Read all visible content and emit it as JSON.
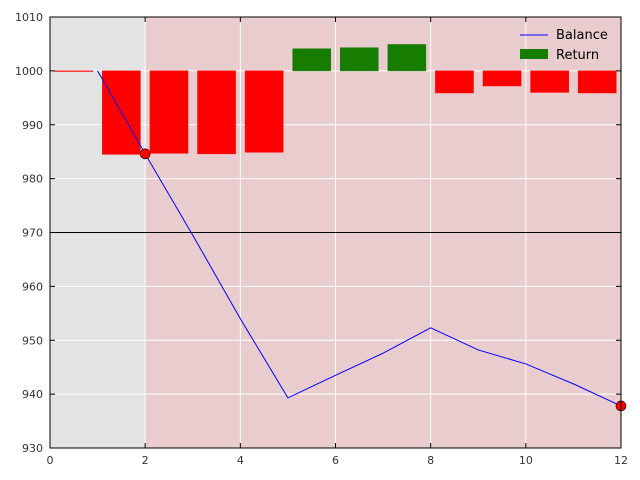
{
  "chart_data": {
    "type": "line",
    "title": "",
    "xlabel": "",
    "ylabel": "",
    "xlim": [
      0,
      12
    ],
    "ylim": [
      930,
      1010
    ],
    "x_ticks": [
      "0",
      "2",
      "4",
      "6",
      "8",
      "10",
      "12"
    ],
    "y_ticks": [
      "930",
      "940",
      "950",
      "960",
      "970",
      "980",
      "990",
      "1000",
      "1010"
    ],
    "grid": true,
    "legend_position": "top-right",
    "shaded_regions": [
      {
        "x_start": 0,
        "x_end": 2,
        "color": "#e3e3e3"
      },
      {
        "x_start": 2,
        "x_end": 12,
        "color": "#e9ccce"
      }
    ],
    "reference_line": {
      "y": 970,
      "color": "#000000"
    },
    "series": [
      {
        "name": "Balance",
        "kind": "line",
        "color": "#0000ff",
        "x": [
          1,
          2,
          3,
          4,
          5,
          6,
          7,
          8,
          9,
          10,
          11,
          12
        ],
        "y": [
          1000,
          984.6,
          969.5,
          954.0,
          939.3,
          943.5,
          947.6,
          952.3,
          948.2,
          945.6,
          941.9,
          937.8
        ]
      },
      {
        "name": "Return",
        "kind": "bar",
        "positive_color": "#177d00",
        "negative_color": "#ff0000",
        "baseline": 1000,
        "bar_width": 0.8,
        "x": [
          0,
          1,
          2,
          3,
          4,
          5,
          6,
          7,
          8,
          9,
          10,
          11
        ],
        "values": [
          -0.1,
          -15.5,
          -15.3,
          -15.4,
          -15.1,
          4.1,
          4.3,
          4.9,
          -4.1,
          -2.8,
          -4.0,
          -4.1
        ]
      }
    ],
    "markers": [
      {
        "x": 2,
        "y": 984.6,
        "color": "#ff0000"
      },
      {
        "x": 12,
        "y": 937.8,
        "color": "#ff0000"
      }
    ]
  }
}
